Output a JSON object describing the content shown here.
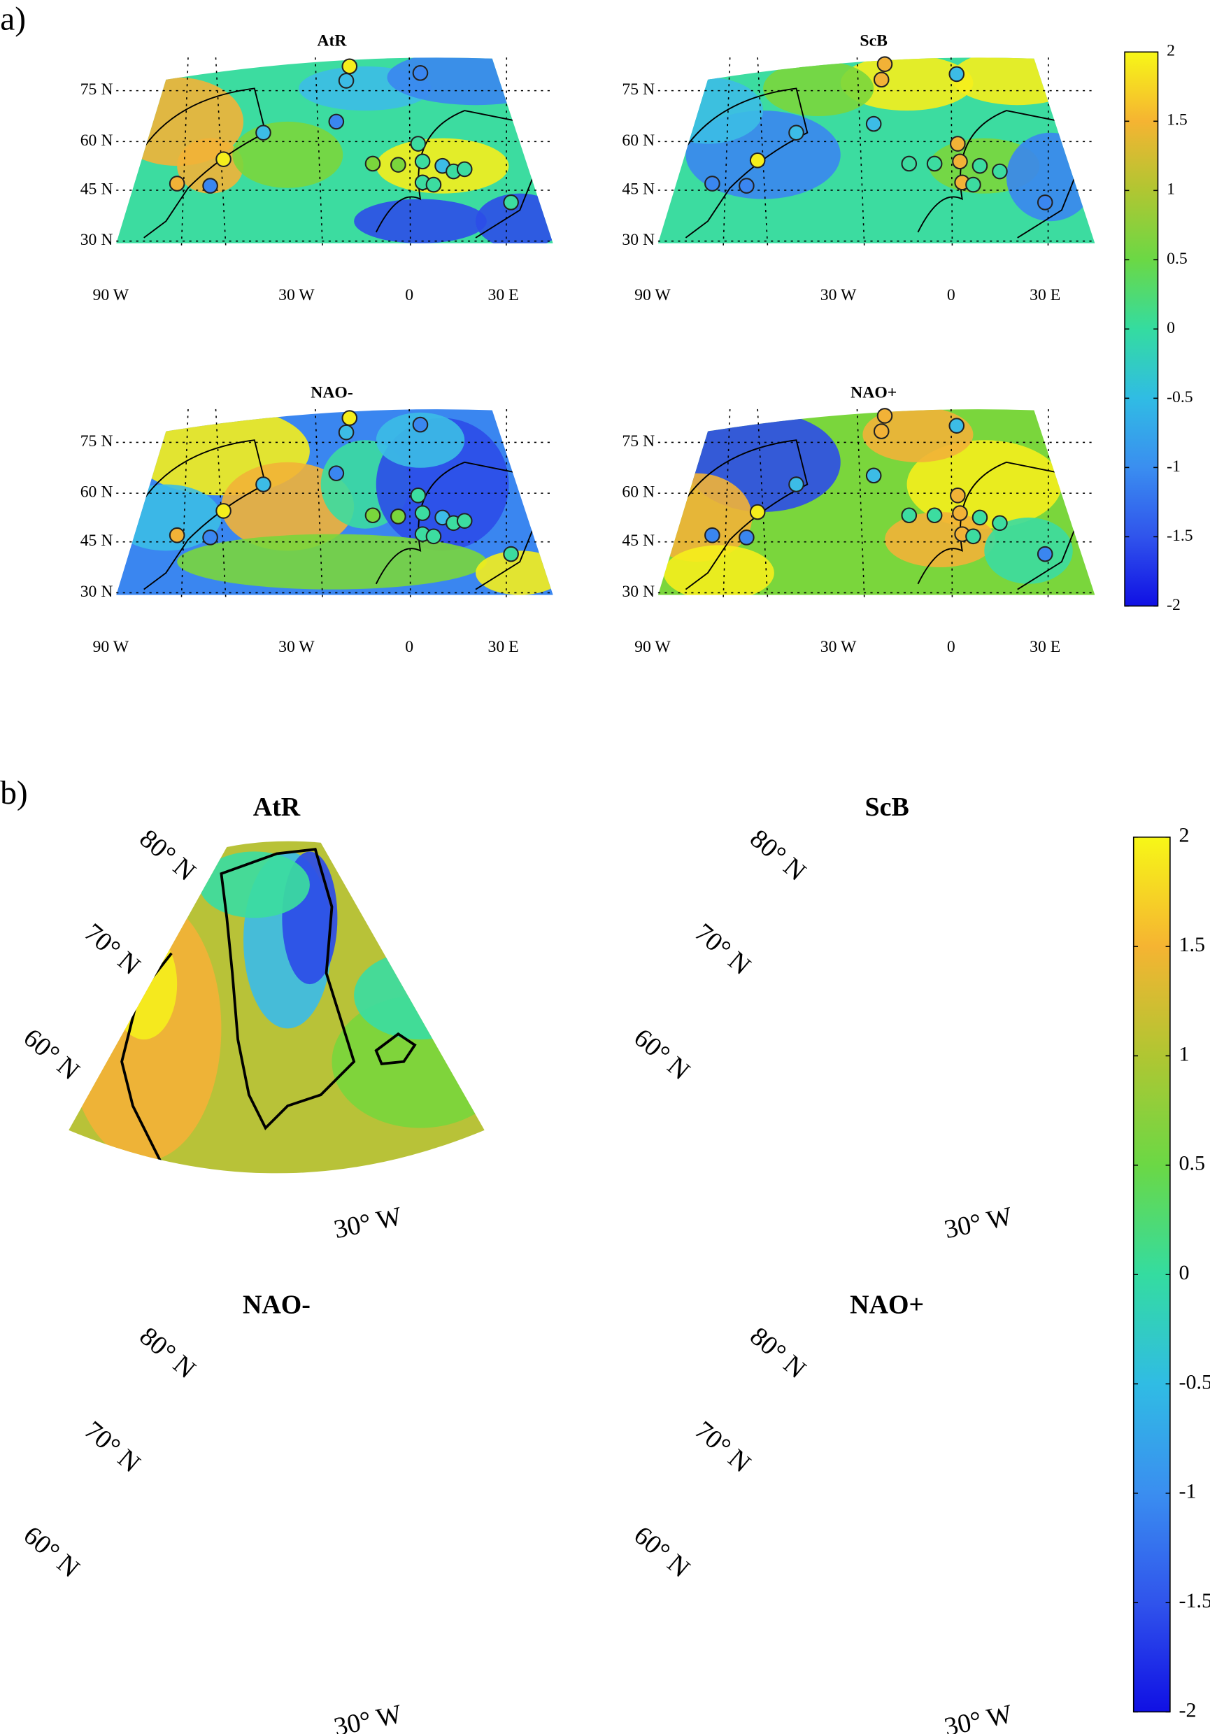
{
  "part_a": {
    "label": "a)",
    "panels": [
      {
        "title": "AtR"
      },
      {
        "title": "ScB"
      },
      {
        "title": "NAO-"
      },
      {
        "title": "NAO+"
      }
    ],
    "lat_labels": [
      "75 N",
      "60 N",
      "45 N",
      "30 N"
    ],
    "lon_labels": [
      "90 W",
      "30 W",
      "0",
      "30 E"
    ],
    "colorbar": {
      "lim": [
        -2,
        2
      ],
      "ticks": [
        2,
        1.5,
        1,
        0.5,
        0,
        -0.5,
        -1,
        -1.5,
        -2
      ]
    }
  },
  "part_b": {
    "label": "b)",
    "panels": [
      {
        "title": "AtR"
      },
      {
        "title": "ScB"
      },
      {
        "title": "NAO-"
      },
      {
        "title": "NAO+"
      }
    ],
    "lat_labels": [
      "80° N",
      "70° N",
      "60° N"
    ],
    "lon_label": "30° W",
    "colorbar": {
      "lim": [
        -2,
        2
      ],
      "ticks": [
        2,
        1.5,
        1,
        0.5,
        0,
        -0.5,
        -1,
        -1.5,
        -2
      ]
    }
  }
}
